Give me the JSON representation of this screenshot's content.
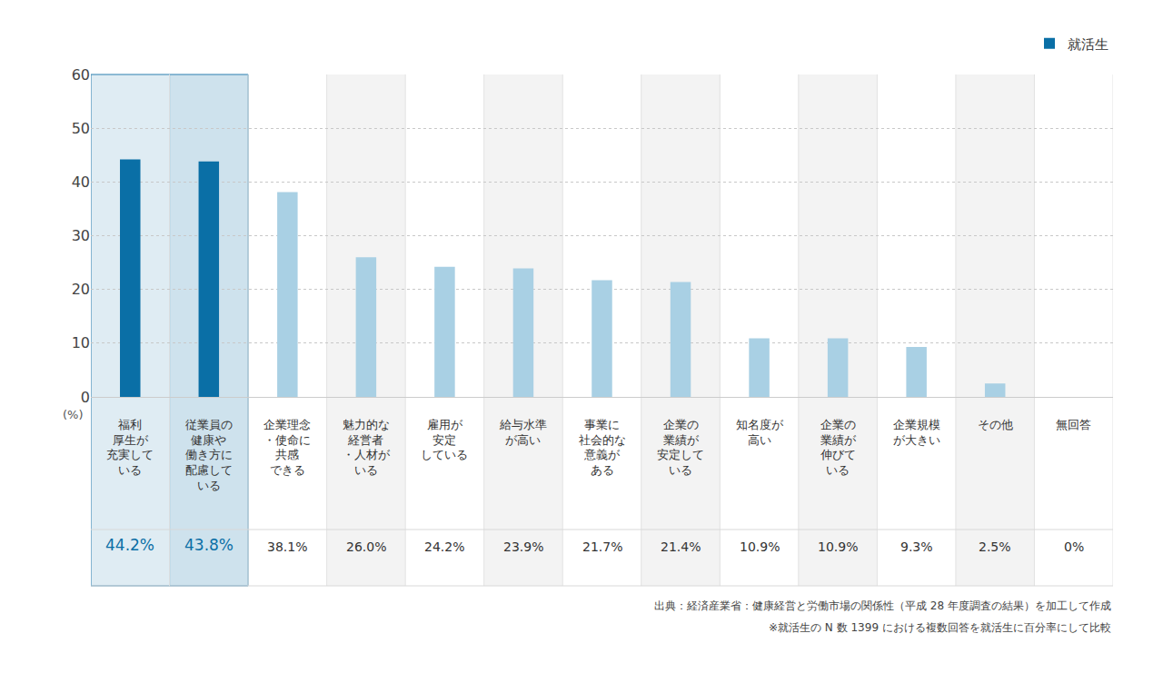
{
  "chart_data": {
    "type": "bar",
    "categories": [
      "福利\n厚生が\n充実して\nいる",
      "従業員の\n健康や\n働き方に\n配慮して\nいる",
      "企業理念\n・使命に\n共感\nできる",
      "魅力的な\n経営者\n・人材が\nいる",
      "雇用が\n安定\nしている",
      "給与水準\nが高い",
      "事業に\n社会的な\n意義が\nある",
      "企業の\n業績が\n安定して\nいる",
      "知名度が\n高い",
      "企業の\n業績が\n伸びて\nいる",
      "企業規模\nが大きい",
      "その他",
      "無回答"
    ],
    "series": [
      {
        "name": "就活生",
        "values": [
          44.2,
          43.8,
          38.1,
          26.0,
          24.2,
          23.9,
          21.7,
          21.4,
          10.9,
          10.9,
          9.3,
          2.5,
          0
        ],
        "value_labels": [
          "44.2%",
          "43.8%",
          "38.1%",
          "26.0%",
          "24.2%",
          "23.9%",
          "21.7%",
          "21.4%",
          "10.9%",
          "10.9%",
          "9.3%",
          "2.5%",
          "0%"
        ],
        "colors": [
          "#0a6fa6",
          "#0a6fa6",
          "#a9d0e4",
          "#a9d0e4",
          "#a9d0e4",
          "#a9d0e4",
          "#a9d0e4",
          "#a9d0e4",
          "#a9d0e4",
          "#a9d0e4",
          "#a9d0e4",
          "#a9d0e4",
          "#a9d0e4"
        ]
      }
    ],
    "y_label": "(%)",
    "ylim": [
      0,
      60
    ],
    "yticks": [
      0,
      10,
      20,
      30,
      40,
      50,
      60
    ],
    "grid": true,
    "legend": "top right",
    "data_labels": true,
    "annotations": [
      "出典：経済産業省：健康経営と労働市場の関係性（平成 28 年度調査の結果）を加工して作成",
      "※就活生の N 数 1399 における複数回答を就活生に百分率にして比較"
    ]
  }
}
